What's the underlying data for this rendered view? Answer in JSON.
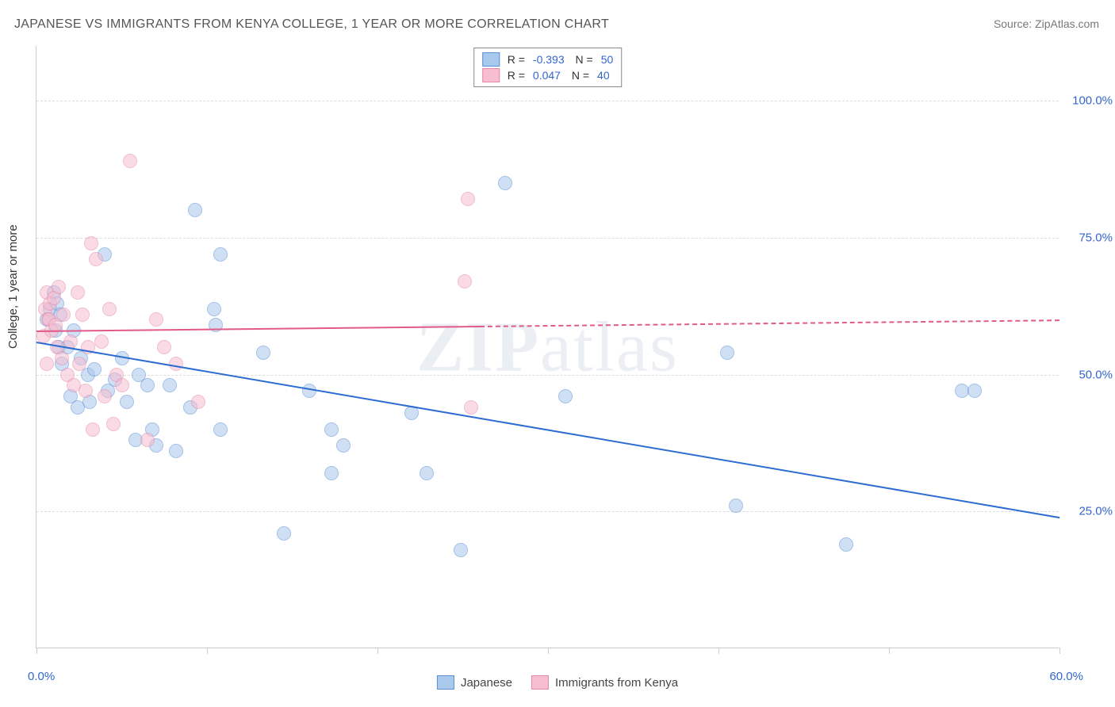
{
  "title": "JAPANESE VS IMMIGRANTS FROM KENYA COLLEGE, 1 YEAR OR MORE CORRELATION CHART",
  "source": "Source: ZipAtlas.com",
  "watermark_prefix": "ZIP",
  "watermark_suffix": "atlas",
  "chart": {
    "type": "scatter",
    "x_label_start": "0.0%",
    "x_label_end": "60.0%",
    "y_title": "College, 1 year or more",
    "x_domain": [
      0,
      60
    ],
    "y_domain": [
      0,
      110
    ],
    "y_ticks": [
      {
        "v": 25,
        "label": "25.0%"
      },
      {
        "v": 50,
        "label": "50.0%"
      },
      {
        "v": 75,
        "label": "75.0%"
      },
      {
        "v": 100,
        "label": "100.0%"
      }
    ],
    "x_tick_positions": [
      0,
      10,
      20,
      30,
      40,
      50,
      60
    ],
    "background_color": "#ffffff",
    "grid_color": "#dddddd",
    "axis_color": "#cccccc",
    "text_color": "#555555",
    "value_color": "#3366cc",
    "marker_radius": 9,
    "marker_stroke_width": 1,
    "trend_line_width": 2,
    "title_fontsize": 16,
    "label_fontsize": 15,
    "series": [
      {
        "name": "Japanese",
        "fill": "#a8c8ec",
        "stroke": "#5b8fd6",
        "fill_opacity": 0.55,
        "R": "-0.393",
        "N": "50",
        "trend": {
          "x1": 0,
          "y1": 56,
          "x2": 60,
          "y2": 24,
          "solid_until_x": 60,
          "color": "#2d6cd0"
        },
        "points": [
          [
            0.6,
            60
          ],
          [
            0.8,
            62
          ],
          [
            1.0,
            65
          ],
          [
            1.1,
            58
          ],
          [
            1.2,
            63
          ],
          [
            1.3,
            55
          ],
          [
            1.4,
            61
          ],
          [
            1.5,
            52
          ],
          [
            1.8,
            55
          ],
          [
            2.0,
            46
          ],
          [
            2.2,
            58
          ],
          [
            2.4,
            44
          ],
          [
            2.6,
            53
          ],
          [
            3.0,
            50
          ],
          [
            3.1,
            45
          ],
          [
            3.4,
            51
          ],
          [
            4.0,
            72
          ],
          [
            4.2,
            47
          ],
          [
            4.6,
            49
          ],
          [
            5.0,
            53
          ],
          [
            5.3,
            45
          ],
          [
            5.8,
            38
          ],
          [
            6.0,
            50
          ],
          [
            6.5,
            48
          ],
          [
            6.8,
            40
          ],
          [
            7.0,
            37
          ],
          [
            7.8,
            48
          ],
          [
            8.2,
            36
          ],
          [
            9.0,
            44
          ],
          [
            9.3,
            80
          ],
          [
            10.4,
            62
          ],
          [
            10.5,
            59
          ],
          [
            10.8,
            72
          ],
          [
            10.8,
            40
          ],
          [
            13.3,
            54
          ],
          [
            14.5,
            21
          ],
          [
            16.0,
            47
          ],
          [
            17.3,
            40
          ],
          [
            17.3,
            32
          ],
          [
            18.0,
            37
          ],
          [
            22.0,
            43
          ],
          [
            22.9,
            32
          ],
          [
            24.9,
            18
          ],
          [
            27.5,
            85
          ],
          [
            31.0,
            46
          ],
          [
            40.5,
            54
          ],
          [
            41.0,
            26
          ],
          [
            47.5,
            19
          ],
          [
            54.3,
            47
          ],
          [
            55.0,
            47
          ]
        ]
      },
      {
        "name": "Immigrants from Kenya",
        "fill": "#f7bdd0",
        "stroke": "#e689a8",
        "fill_opacity": 0.55,
        "R": "0.047",
        "N": "40",
        "trend": {
          "x1": 0,
          "y1": 58,
          "x2": 60,
          "y2": 60,
          "solid_until_x": 26,
          "color": "#e05a8a"
        },
        "points": [
          [
            0.4,
            57
          ],
          [
            0.5,
            62
          ],
          [
            0.6,
            65
          ],
          [
            0.7,
            60
          ],
          [
            0.75,
            60
          ],
          [
            0.8,
            63
          ],
          [
            0.9,
            58
          ],
          [
            1.0,
            64
          ],
          [
            1.1,
            59
          ],
          [
            1.2,
            55
          ],
          [
            1.3,
            66
          ],
          [
            1.5,
            53
          ],
          [
            1.6,
            61
          ],
          [
            1.8,
            50
          ],
          [
            2.0,
            56
          ],
          [
            2.2,
            48
          ],
          [
            2.4,
            65
          ],
          [
            2.5,
            52
          ],
          [
            2.7,
            61
          ],
          [
            2.9,
            47
          ],
          [
            3.0,
            55
          ],
          [
            3.2,
            74
          ],
          [
            3.3,
            40
          ],
          [
            3.5,
            71
          ],
          [
            3.8,
            56
          ],
          [
            4.0,
            46
          ],
          [
            4.3,
            62
          ],
          [
            4.5,
            41
          ],
          [
            4.7,
            50
          ],
          [
            5.0,
            48
          ],
          [
            5.5,
            89
          ],
          [
            6.5,
            38
          ],
          [
            7.0,
            60
          ],
          [
            7.5,
            55
          ],
          [
            8.2,
            52
          ],
          [
            9.5,
            45
          ],
          [
            25.1,
            67
          ],
          [
            25.3,
            82
          ],
          [
            25.5,
            44
          ],
          [
            0.6,
            52
          ]
        ]
      }
    ]
  },
  "legend_bottom": [
    {
      "swatch_fill": "#a8c8ec",
      "swatch_stroke": "#5b8fd6",
      "label": "Japanese"
    },
    {
      "swatch_fill": "#f7bdd0",
      "swatch_stroke": "#e689a8",
      "label": "Immigrants from Kenya"
    }
  ]
}
